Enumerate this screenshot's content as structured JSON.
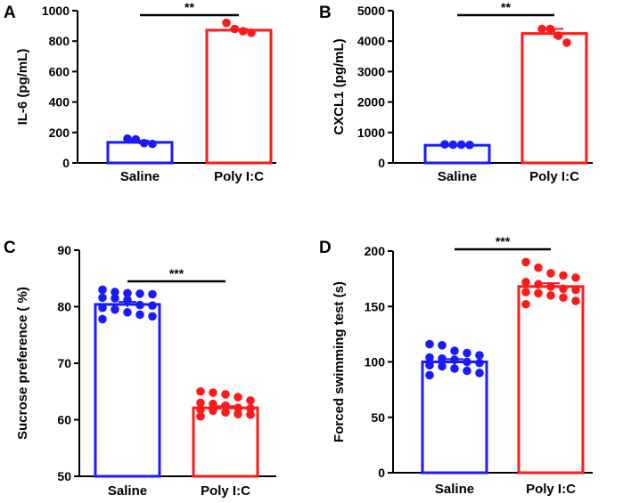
{
  "colors": {
    "saline": "#1a1aff",
    "polyic": "#ff1a1a",
    "axis": "#000000"
  },
  "chart_data": [
    {
      "panel": "A",
      "type": "bar",
      "categories": [
        "Saline",
        "Poly I:C"
      ],
      "ylabel": "IL-6 (pg/mL)",
      "ylim": [
        0,
        1000
      ],
      "yticks": [
        0,
        200,
        400,
        600,
        800,
        1000
      ],
      "values": [
        135,
        872
      ],
      "sem": [
        12,
        8
      ],
      "points": [
        [
          155,
          160,
          130,
          125
        ],
        [
          880,
          920,
          865,
          855
        ]
      ],
      "significance": "**"
    },
    {
      "panel": "B",
      "type": "bar",
      "categories": [
        "Saline",
        "Poly I:C"
      ],
      "ylabel": "CXCL1 (pg/mL)",
      "ylim": [
        0,
        5000
      ],
      "yticks": [
        0,
        1000,
        2000,
        3000,
        4000,
        5000
      ],
      "values": [
        580,
        4250
      ],
      "sem": [
        20,
        150
      ],
      "points": [
        [
          600,
          590,
          610,
          600
        ],
        [
          4400,
          4400,
          4180,
          3950
        ]
      ],
      "significance": "**"
    },
    {
      "panel": "C",
      "type": "bar",
      "categories": [
        "Saline",
        "Poly I:C"
      ],
      "ylabel": "Sucrose preference ( %)",
      "ylim": [
        50,
        90
      ],
      "yticks": [
        50,
        60,
        70,
        80,
        90
      ],
      "values": [
        80.4,
        62.1
      ],
      "sem": [
        0.45,
        0.3
      ],
      "points": [
        [
          83.0,
          82.6,
          82.4,
          82.3,
          82.2,
          81.6,
          81.5,
          81.2,
          80.3,
          80.2,
          79.8,
          79.5,
          79.0,
          78.6,
          78.3,
          77.8
        ],
        [
          65.0,
          64.8,
          64.5,
          64.0,
          63.4,
          63.0,
          62.8,
          62.5,
          62.1,
          62.0,
          61.8,
          61.6,
          61.3,
          61.0,
          60.9,
          60.6
        ]
      ],
      "significance": "***"
    },
    {
      "panel": "D",
      "type": "bar",
      "categories": [
        "Saline",
        "Poly I:C"
      ],
      "ylabel": "Forced swimming test (s)",
      "ylim": [
        0,
        200
      ],
      "yticks": [
        0,
        50,
        100,
        150,
        200
      ],
      "values": [
        100,
        168
      ],
      "sem": [
        2.5,
        3
      ],
      "points": [
        [
          116,
          115,
          110,
          108,
          106,
          104,
          103,
          102,
          100,
          99,
          97,
          96,
          94,
          92,
          90,
          88
        ],
        [
          190,
          185,
          180,
          178,
          176,
          172,
          170,
          168,
          166,
          165,
          163,
          162,
          160,
          158,
          155,
          152
        ]
      ],
      "significance": "***"
    }
  ]
}
